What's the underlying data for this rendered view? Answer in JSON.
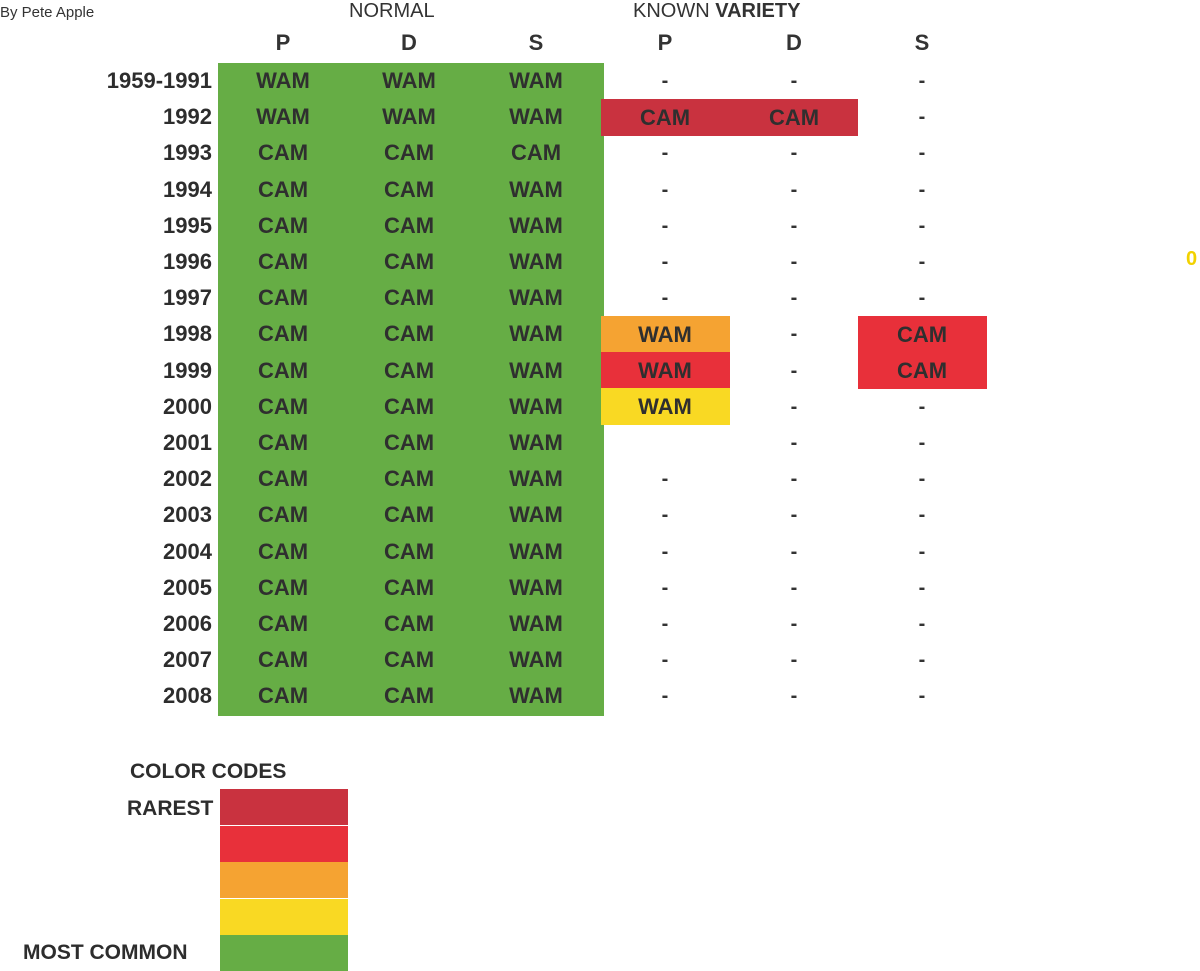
{
  "byline": "By Pete Apple",
  "headers": {
    "normal": "NORMAL",
    "known": "KNOWN",
    "variety": "VARIETY",
    "normal_cols": [
      "P",
      "D",
      "S"
    ],
    "variety_cols": [
      "P",
      "D",
      "S"
    ]
  },
  "rows": [
    {
      "year": "1959-1991",
      "normal": [
        "WAM",
        "WAM",
        "WAM"
      ],
      "variety": [
        "-",
        "-",
        "-"
      ]
    },
    {
      "year": "1992",
      "normal": [
        "WAM",
        "WAM",
        "WAM"
      ],
      "variety": [
        "",
        "",
        "-"
      ]
    },
    {
      "year": "1993",
      "normal": [
        "CAM",
        "CAM",
        "CAM"
      ],
      "variety": [
        "-",
        "-",
        "-"
      ]
    },
    {
      "year": "1994",
      "normal": [
        "CAM",
        "CAM",
        "WAM"
      ],
      "variety": [
        "-",
        "-",
        "-"
      ]
    },
    {
      "year": "1995",
      "normal": [
        "CAM",
        "CAM",
        "WAM"
      ],
      "variety": [
        "-",
        "-",
        "-"
      ]
    },
    {
      "year": "1996",
      "normal": [
        "CAM",
        "CAM",
        "WAM"
      ],
      "variety": [
        "-",
        "-",
        "-"
      ]
    },
    {
      "year": "1997",
      "normal": [
        "CAM",
        "CAM",
        "WAM"
      ],
      "variety": [
        "-",
        "-",
        "-"
      ]
    },
    {
      "year": "1998",
      "normal": [
        "CAM",
        "CAM",
        "WAM"
      ],
      "variety": [
        "",
        "-",
        ""
      ]
    },
    {
      "year": "1999",
      "normal": [
        "CAM",
        "CAM",
        "WAM"
      ],
      "variety": [
        "",
        "-",
        ""
      ]
    },
    {
      "year": "2000",
      "normal": [
        "CAM",
        "CAM",
        "WAM"
      ],
      "variety": [
        "",
        "-",
        "-"
      ]
    },
    {
      "year": "2001",
      "normal": [
        "CAM",
        "CAM",
        "WAM"
      ],
      "variety": [
        "",
        "-",
        "-"
      ]
    },
    {
      "year": "2002",
      "normal": [
        "CAM",
        "CAM",
        "WAM"
      ],
      "variety": [
        "-",
        "-",
        "-"
      ]
    },
    {
      "year": "2003",
      "normal": [
        "CAM",
        "CAM",
        "WAM"
      ],
      "variety": [
        "-",
        "-",
        "-"
      ]
    },
    {
      "year": "2004",
      "normal": [
        "CAM",
        "CAM",
        "WAM"
      ],
      "variety": [
        "-",
        "-",
        "-"
      ]
    },
    {
      "year": "2005",
      "normal": [
        "CAM",
        "CAM",
        "WAM"
      ],
      "variety": [
        "-",
        "-",
        "-"
      ]
    },
    {
      "year": "2006",
      "normal": [
        "CAM",
        "CAM",
        "WAM"
      ],
      "variety": [
        "-",
        "-",
        "-"
      ]
    },
    {
      "year": "2007",
      "normal": [
        "CAM",
        "CAM",
        "WAM"
      ],
      "variety": [
        "-",
        "-",
        "-"
      ]
    },
    {
      "year": "2008",
      "normal": [
        "CAM",
        "CAM",
        "WAM"
      ],
      "variety": [
        "-",
        "-",
        "-"
      ]
    }
  ],
  "highlights": [
    {
      "label": "CAM",
      "row": 1,
      "col_start": 0,
      "col_end": 0,
      "color": "#c9323f"
    },
    {
      "label": "CAM",
      "row": 1,
      "col_start": 1,
      "col_end": 1,
      "color": "#c9323f"
    },
    {
      "label": "WAM",
      "row": 7,
      "col_start": 0,
      "col_end": 0,
      "color": "#f5a332"
    },
    {
      "label": "WAM",
      "row": 8,
      "col_start": 0,
      "col_end": 0,
      "color": "#e8303a"
    },
    {
      "label": "WAM",
      "row": 9,
      "col_start": 0,
      "col_end": 0,
      "color": "#f9d923"
    },
    {
      "label": "CAM",
      "row": 7,
      "col_start": 2,
      "col_end": 2,
      "color": "#e8303a"
    },
    {
      "label": "CAM",
      "row": 8,
      "col_start": 2,
      "col_end": 2,
      "color": "#e8303a"
    }
  ],
  "stray_mark": "0",
  "legend": {
    "title": "COLOR  CODES",
    "rarest_label": "RAREST",
    "common_label": "MOST COMMON",
    "colors": [
      "#c9323f",
      "#e8303a",
      "#f5a332",
      "#f9d923",
      "#66ad45"
    ]
  },
  "colors": {
    "normal_block": "#66ad45"
  }
}
